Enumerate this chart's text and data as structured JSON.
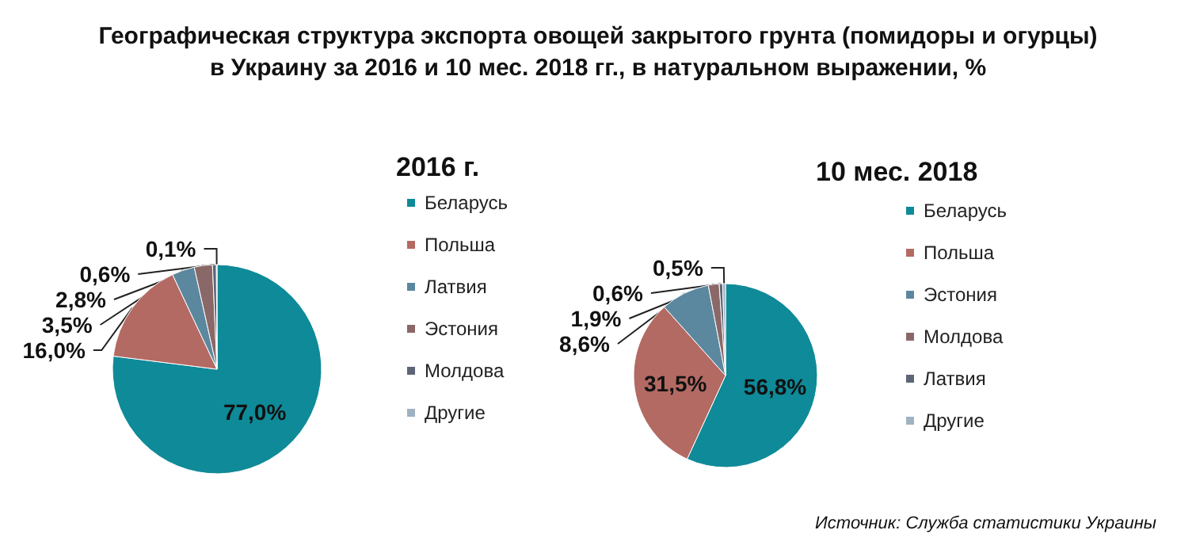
{
  "chart_data": [
    {
      "type": "pie",
      "title": "Географическая структура экспорта овощей закрытого грунта (помидоры и огурцы)\nв Украину за 2016 и 10 мес. 2018 гг., в натуральном выражении, %",
      "subtitle": "2016 г.",
      "categories": [
        "Беларусь",
        "Польша",
        "Латвия",
        "Эстония",
        "Молдова",
        "Другие"
      ],
      "values": [
        77.0,
        16.0,
        3.5,
        2.8,
        0.6,
        0.1
      ],
      "value_labels": [
        "77,0%",
        "16,0%",
        "3,5%",
        "2,8%",
        "0,6%",
        "0,1%"
      ],
      "colors": [
        "#0f8a98",
        "#b36a63",
        "#5b889f",
        "#8b6868",
        "#5d6577",
        "#9fb2c2"
      ],
      "legend": "right"
    },
    {
      "type": "pie",
      "title": "10 мес. 2018",
      "categories": [
        "Беларусь",
        "Польша",
        "Эстония",
        "Молдова",
        "Латвия",
        "Другие"
      ],
      "values": [
        56.8,
        31.5,
        8.6,
        1.9,
        0.6,
        0.5
      ],
      "value_labels": [
        "56,8%",
        "31,5%",
        "8,6%",
        "1,9%",
        "0,6%",
        "0,5%"
      ],
      "colors": [
        "#0f8a98",
        "#b36a63",
        "#5b889f",
        "#8b6868",
        "#5d6577",
        "#9fb2c2"
      ],
      "legend": "right",
      "annotations": [
        "Источник: Служба статистики Украины"
      ]
    }
  ]
}
